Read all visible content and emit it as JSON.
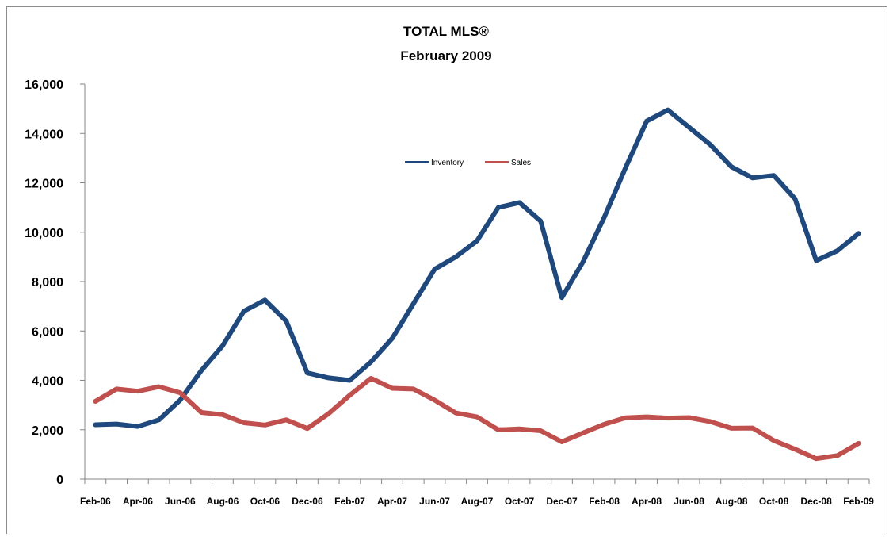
{
  "chart_data": {
    "type": "line",
    "title": "TOTAL MLS®",
    "subtitle": "February 2009",
    "xlabel": "",
    "ylabel": "",
    "ylim": [
      0,
      16000
    ],
    "yticks": [
      "0",
      "2,000",
      "4,000",
      "6,000",
      "8,000",
      "10,000",
      "12,000",
      "14,000",
      "16,000"
    ],
    "categories": [
      "Feb-06",
      "Mar-06",
      "Apr-06",
      "May-06",
      "Jun-06",
      "Jul-06",
      "Aug-06",
      "Sep-06",
      "Oct-06",
      "Nov-06",
      "Dec-06",
      "Jan-07",
      "Feb-07",
      "Mar-07",
      "Apr-07",
      "May-07",
      "Jun-07",
      "Jul-07",
      "Aug-07",
      "Sep-07",
      "Oct-07",
      "Nov-07",
      "Dec-07",
      "Jan-08",
      "Feb-08",
      "Mar-08",
      "Apr-08",
      "May-08",
      "Jun-08",
      "Jul-08",
      "Aug-08",
      "Sep-08",
      "Oct-08",
      "Nov-08",
      "Dec-08",
      "Jan-09",
      "Feb-09"
    ],
    "xtick_labels": [
      "Feb-06",
      "Apr-06",
      "Jun-06",
      "Aug-06",
      "Oct-06",
      "Dec-06",
      "Feb-07",
      "Apr-07",
      "Jun-07",
      "Aug-07",
      "Oct-07",
      "Dec-07",
      "Feb-08",
      "Apr-08",
      "Jun-08",
      "Aug-08",
      "Oct-08",
      "Dec-08",
      "Feb-09"
    ],
    "grid": false,
    "legend_position": "top-center",
    "series": [
      {
        "name": "Inventory",
        "color": "#1f497d",
        "values": [
          2200,
          2230,
          2130,
          2400,
          3200,
          4400,
          5400,
          6800,
          7250,
          6400,
          4300,
          4100,
          4000,
          4750,
          5700,
          7100,
          8500,
          9000,
          9650,
          11000,
          11200,
          10450,
          7350,
          8800,
          10600,
          12600,
          14500,
          14950,
          14250,
          13550,
          12650,
          12200,
          12300,
          11350,
          8850,
          9250,
          9950
        ]
      },
      {
        "name": "Sales",
        "color": "#c0504d",
        "values": [
          3150,
          3650,
          3560,
          3740,
          3500,
          2700,
          2610,
          2280,
          2190,
          2400,
          2050,
          2650,
          3400,
          4080,
          3680,
          3650,
          3200,
          2680,
          2520,
          2000,
          2030,
          1960,
          1510,
          1870,
          2220,
          2480,
          2520,
          2470,
          2490,
          2330,
          2060,
          2070,
          1560,
          1210,
          830,
          950,
          1450
        ]
      }
    ]
  }
}
